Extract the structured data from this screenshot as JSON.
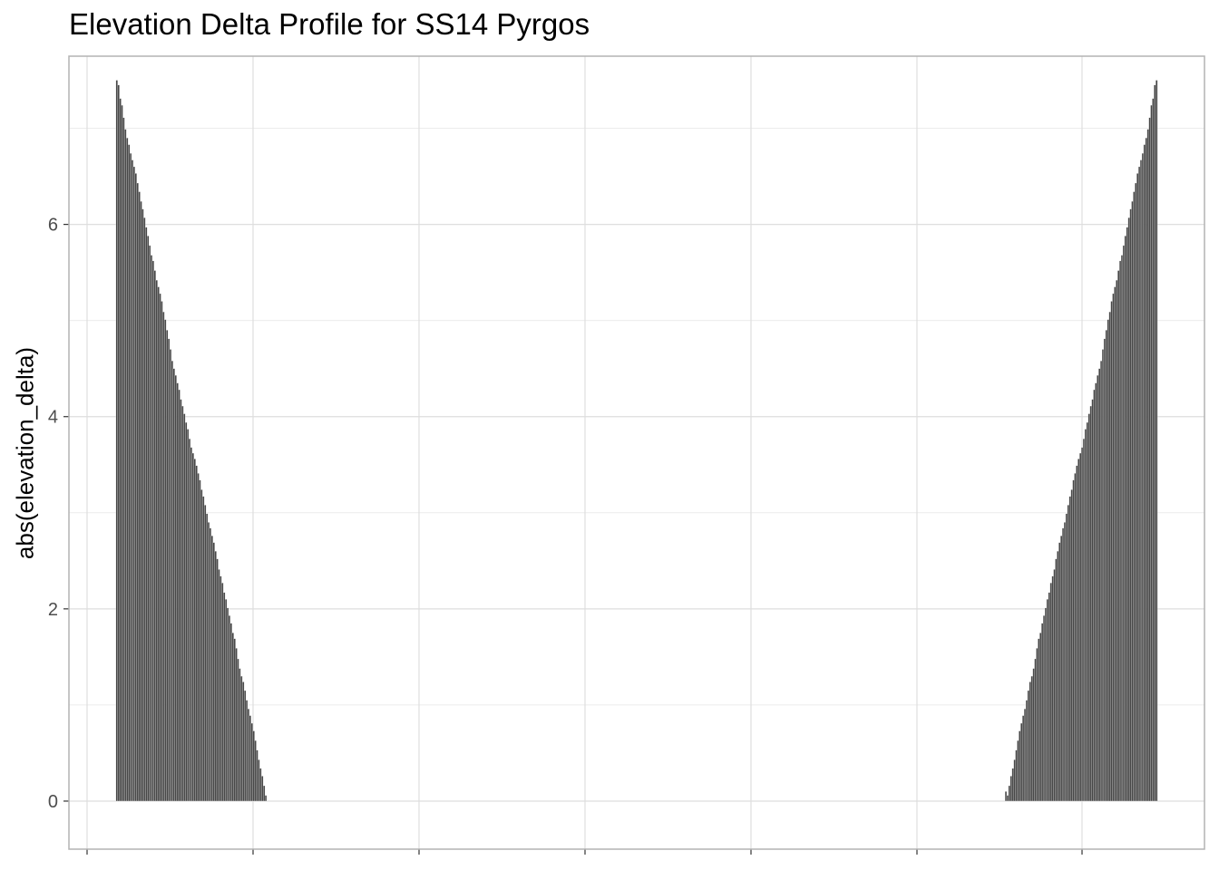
{
  "chart": {
    "title": "Elevation Delta Profile for SS14 Pyrgos",
    "ylabel": "abs(elevation_delta)",
    "xlabel": ""
  },
  "chart_data": {
    "type": "bar",
    "title": "Elevation Delta Profile for SS14 Pyrgos",
    "xlabel": "",
    "ylabel": "abs(elevation_delta)",
    "ylim": [
      -0.5,
      7.75
    ],
    "y_ticks": [
      0,
      2,
      4,
      6
    ],
    "x_tick_labels_visible": false,
    "grid": true,
    "bar_color": "#474747",
    "panel_border_color": "#b3b3b3",
    "grid_color": "#dedede",
    "segments": [
      {
        "name": "descending",
        "x_range": [
          1,
          108
        ],
        "y_start": 7.5,
        "y_end": 0.0
      },
      {
        "name": "ascending",
        "x_range": [
          625,
          732
        ],
        "y_start": 0.1,
        "y_end": 7.5
      }
    ],
    "x_extent": [
      1,
      732
    ],
    "values": [
      7.5,
      7.45,
      7.31,
      7.24,
      7.11,
      6.99,
      6.9,
      6.83,
      6.74,
      6.67,
      6.6,
      6.53,
      6.43,
      6.34,
      6.24,
      6.16,
      6.07,
      5.97,
      5.88,
      5.78,
      5.68,
      5.62,
      5.52,
      5.42,
      5.35,
      5.28,
      5.2,
      5.09,
      5.01,
      4.9,
      4.81,
      4.7,
      4.58,
      4.5,
      4.43,
      4.35,
      4.28,
      4.18,
      4.11,
      4.03,
      3.94,
      3.87,
      3.77,
      3.68,
      3.62,
      3.56,
      3.49,
      3.41,
      3.34,
      3.24,
      3.17,
      3.08,
      2.99,
      2.9,
      2.84,
      2.76,
      2.69,
      2.6,
      2.52,
      2.41,
      2.34,
      2.27,
      2.17,
      2.1,
      2.01,
      1.93,
      1.85,
      1.75,
      1.69,
      1.59,
      1.48,
      1.38,
      1.3,
      1.24,
      1.15,
      1.05,
      0.96,
      0.89,
      0.81,
      0.73,
      0.63,
      0.53,
      0.43,
      0.34,
      0.26,
      0.16,
      0.06,
      0.0
    ]
  }
}
